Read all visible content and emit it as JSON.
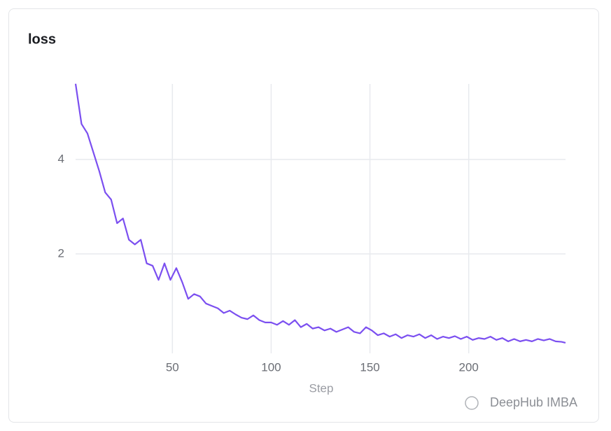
{
  "chart_data": {
    "type": "line",
    "title": "loss",
    "x_label": "Step",
    "watermark": "DeepHub IMBA",
    "x": [
      1,
      4,
      7,
      10,
      13,
      16,
      19,
      22,
      25,
      28,
      31,
      34,
      37,
      40,
      43,
      46,
      49,
      52,
      55,
      58,
      61,
      64,
      67,
      70,
      73,
      76,
      79,
      82,
      85,
      88,
      91,
      94,
      97,
      100,
      103,
      106,
      109,
      112,
      115,
      118,
      121,
      124,
      127,
      130,
      133,
      136,
      139,
      142,
      145,
      148,
      151,
      154,
      157,
      160,
      163,
      166,
      169,
      172,
      175,
      178,
      181,
      184,
      187,
      190,
      193,
      196,
      199,
      202,
      205,
      208,
      211,
      214,
      217,
      220,
      223,
      226,
      229,
      232,
      235,
      238,
      241,
      244,
      247,
      249
    ],
    "series": [
      {
        "name": "loss",
        "color": "#7b4ff0",
        "values": [
          5.6,
          4.75,
          4.55,
          4.15,
          3.75,
          3.3,
          3.15,
          2.65,
          2.75,
          2.3,
          2.2,
          2.3,
          1.8,
          1.75,
          1.45,
          1.8,
          1.45,
          1.7,
          1.4,
          1.05,
          1.15,
          1.1,
          0.95,
          0.9,
          0.85,
          0.75,
          0.8,
          0.72,
          0.65,
          0.62,
          0.7,
          0.6,
          0.55,
          0.55,
          0.5,
          0.58,
          0.5,
          0.6,
          0.45,
          0.52,
          0.42,
          0.45,
          0.38,
          0.42,
          0.35,
          0.4,
          0.45,
          0.35,
          0.32,
          0.45,
          0.38,
          0.28,
          0.32,
          0.25,
          0.3,
          0.22,
          0.28,
          0.25,
          0.3,
          0.22,
          0.28,
          0.2,
          0.25,
          0.22,
          0.26,
          0.2,
          0.25,
          0.18,
          0.22,
          0.2,
          0.25,
          0.18,
          0.22,
          0.15,
          0.2,
          0.15,
          0.18,
          0.15,
          0.2,
          0.17,
          0.2,
          0.15,
          0.14,
          0.12
        ]
      }
    ],
    "xlim": [
      1,
      249
    ],
    "ylim": [
      0,
      5.7
    ],
    "xticks": [
      50,
      100,
      150,
      200
    ],
    "yticks": [
      2,
      4
    ],
    "grid": true
  }
}
